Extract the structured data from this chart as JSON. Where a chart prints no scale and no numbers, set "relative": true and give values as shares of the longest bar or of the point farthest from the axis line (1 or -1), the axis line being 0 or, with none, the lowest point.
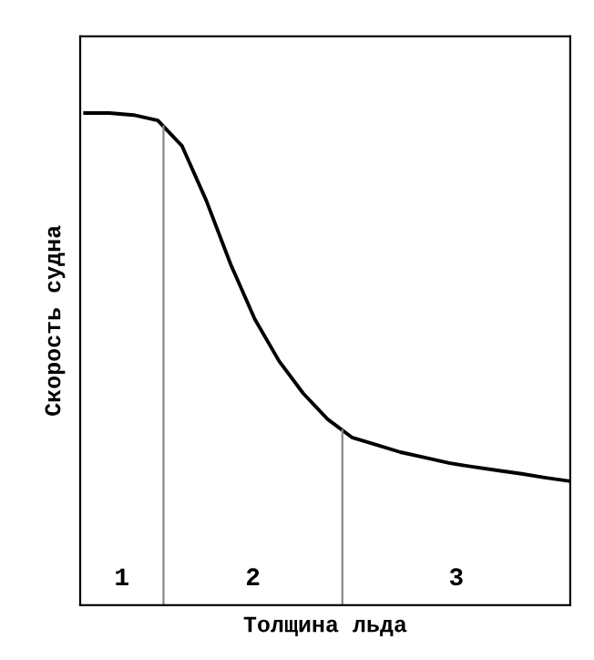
{
  "chart_data": {
    "type": "line",
    "relative": true,
    "xlabel": "Толщина льда",
    "ylabel": "Скорость судна",
    "categories": [
      null,
      null,
      null,
      null,
      null,
      null,
      null,
      null,
      null,
      null,
      null,
      null,
      null,
      null,
      null,
      null,
      null,
      null,
      null,
      null,
      null
    ],
    "series": [
      {
        "color": "#000000",
        "values": [
          1,
          1,
          0.996,
          0.985,
          0.933,
          0.822,
          0.693,
          0.581,
          0.496,
          0.43,
          0.378,
          0.341,
          0.326,
          0.311,
          0.3,
          0.289,
          0.281,
          0.274,
          0.267,
          0.259,
          0.252
        ]
      }
    ],
    "annotations": [
      "1",
      "2",
      "3"
    ],
    "legend": false,
    "marker": "none",
    "line_style": "solid"
  }
}
